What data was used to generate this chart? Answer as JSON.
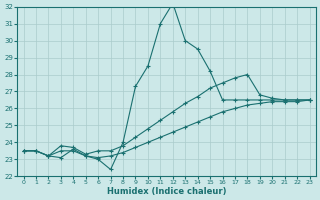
{
  "xlabel": "Humidex (Indice chaleur)",
  "bg_color": "#cce8e8",
  "grid_color": "#aacccc",
  "line_color": "#1a7070",
  "xlim": [
    -0.5,
    23.5
  ],
  "ylim": [
    22,
    32
  ],
  "yticks": [
    22,
    23,
    24,
    25,
    26,
    27,
    28,
    29,
    30,
    31,
    32
  ],
  "xticks": [
    0,
    1,
    2,
    3,
    4,
    5,
    6,
    7,
    8,
    9,
    10,
    11,
    12,
    13,
    14,
    15,
    16,
    17,
    18,
    19,
    20,
    21,
    22,
    23
  ],
  "line1_x": [
    0,
    1,
    2,
    3,
    4,
    5,
    6,
    7,
    8,
    9,
    10,
    11,
    12,
    13,
    14,
    15,
    16,
    17,
    18,
    19,
    20,
    21,
    22,
    23
  ],
  "line1_y": [
    23.5,
    23.5,
    23.2,
    23.1,
    23.6,
    23.2,
    23.0,
    22.4,
    24.0,
    27.3,
    28.5,
    31.0,
    32.2,
    30.0,
    29.5,
    28.2,
    26.5,
    26.5,
    26.5,
    26.5,
    26.5,
    26.5,
    26.5,
    26.5
  ],
  "line2_x": [
    0,
    1,
    2,
    3,
    4,
    5,
    6,
    7,
    8,
    9,
    10,
    11,
    12,
    13,
    14,
    15,
    16,
    17,
    18,
    19,
    20,
    21,
    22,
    23
  ],
  "line2_y": [
    23.5,
    23.5,
    23.2,
    23.8,
    23.7,
    23.3,
    23.5,
    23.5,
    23.8,
    24.3,
    24.8,
    25.3,
    25.8,
    26.3,
    26.7,
    27.2,
    27.5,
    27.8,
    28.0,
    26.8,
    26.6,
    26.5,
    26.5,
    26.5
  ],
  "line3_x": [
    0,
    1,
    2,
    3,
    4,
    5,
    6,
    7,
    8,
    9,
    10,
    11,
    12,
    13,
    14,
    15,
    16,
    17,
    18,
    19,
    20,
    21,
    22,
    23
  ],
  "line3_y": [
    23.5,
    23.5,
    23.2,
    23.5,
    23.5,
    23.2,
    23.1,
    23.2,
    23.4,
    23.7,
    24.0,
    24.3,
    24.6,
    24.9,
    25.2,
    25.5,
    25.8,
    26.0,
    26.2,
    26.3,
    26.4,
    26.4,
    26.4,
    26.5
  ]
}
